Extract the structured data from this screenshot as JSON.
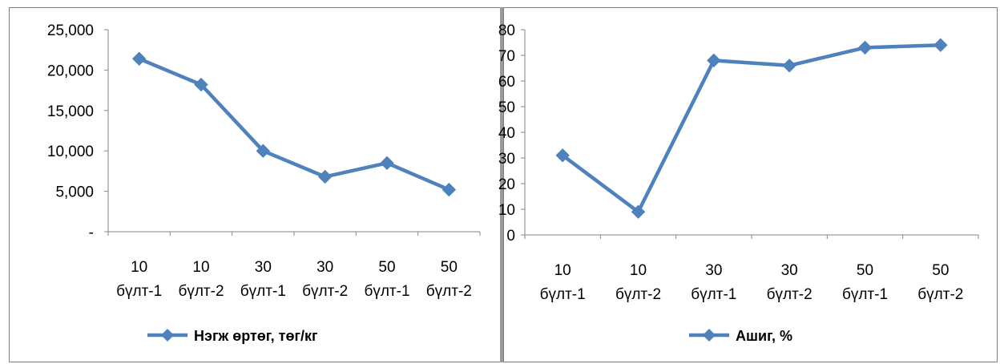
{
  "chart_data": [
    {
      "type": "line",
      "categories": [
        [
          "10",
          "бүлт-1"
        ],
        [
          "10",
          "бүлт-2"
        ],
        [
          "30",
          "бүлт-1"
        ],
        [
          "30",
          "бүлт-2"
        ],
        [
          "50",
          "бүлт-1"
        ],
        [
          "50",
          "бүлт-2"
        ]
      ],
      "series": [
        {
          "name": "Нэгж өртөг, төг/кг",
          "values": [
            21400,
            18200,
            10000,
            6800,
            8500,
            5200
          ],
          "color": "#4f81bd"
        }
      ],
      "yticks": [
        "-",
        "5,000",
        "10,000",
        "15,000",
        "20,000",
        "25,000"
      ],
      "ylim": [
        0,
        25000
      ],
      "grid": false,
      "legend": "bottom",
      "marker": "diamond"
    },
    {
      "type": "line",
      "categories": [
        [
          "10",
          "бүлт-1"
        ],
        [
          "10",
          "бүлт-2"
        ],
        [
          "30",
          "бүлт-1"
        ],
        [
          "30",
          "бүлт-2"
        ],
        [
          "50",
          "бүлт-1"
        ],
        [
          "50",
          "бүлт-2"
        ]
      ],
      "series": [
        {
          "name": "Ашиг, %",
          "values": [
            31,
            9,
            68,
            66,
            73,
            74
          ],
          "color": "#4f81bd"
        }
      ],
      "yticks": [
        "0",
        "10",
        "20",
        "30",
        "40",
        "50",
        "60",
        "70",
        "80"
      ],
      "ylim": [
        0,
        80
      ],
      "grid": false,
      "legend": "bottom",
      "marker": "diamond"
    }
  ]
}
